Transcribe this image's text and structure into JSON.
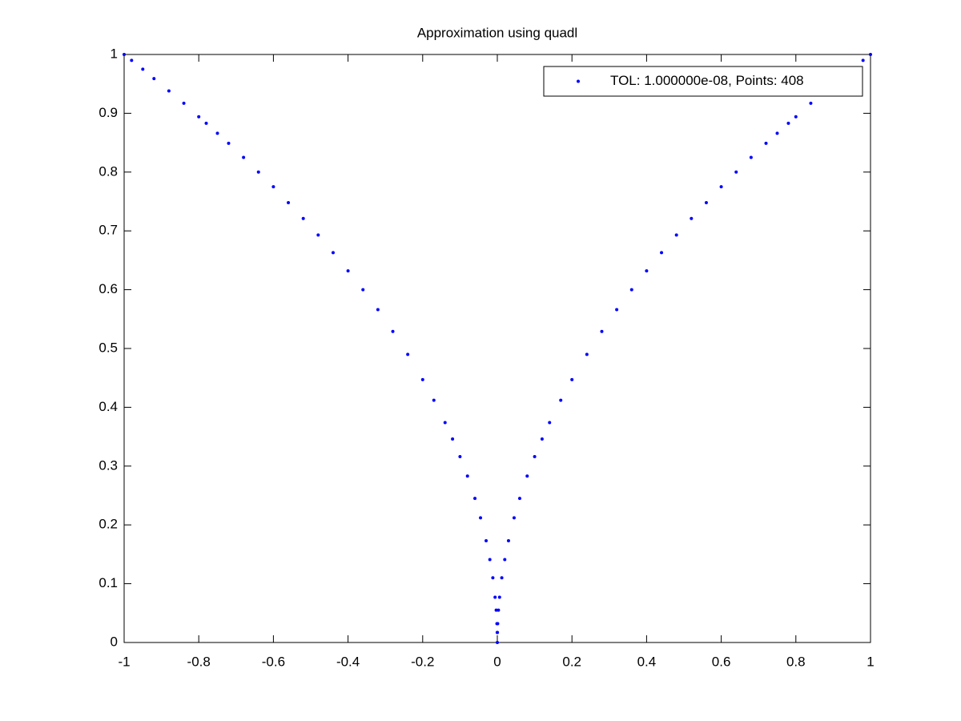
{
  "chart_data": {
    "type": "scatter",
    "title": "Approximation using quadl",
    "x": [
      -1,
      -0.98,
      -0.95,
      -0.92,
      -0.88,
      -0.84,
      -0.8,
      -0.78,
      -0.75,
      -0.72,
      -0.68,
      -0.64,
      -0.6,
      -0.56,
      -0.52,
      -0.48,
      -0.44,
      -0.4,
      -0.36,
      -0.32,
      -0.28,
      -0.24,
      -0.2,
      -0.17,
      -0.14,
      -0.12,
      -0.1,
      -0.08,
      -0.06,
      -0.045,
      -0.03,
      -0.02,
      -0.012,
      -0.006,
      -0.003,
      -0.001,
      -0.0003,
      0,
      0.0003,
      0.001,
      0.003,
      0.006,
      0.012,
      0.02,
      0.03,
      0.045,
      0.06,
      0.08,
      0.1,
      0.12,
      0.14,
      0.17,
      0.2,
      0.24,
      0.28,
      0.32,
      0.36,
      0.4,
      0.44,
      0.48,
      0.52,
      0.56,
      0.6,
      0.64,
      0.68,
      0.72,
      0.75,
      0.78,
      0.8,
      0.84,
      0.88,
      0.92,
      0.95,
      0.98,
      1
    ],
    "series": [
      {
        "name": "TOL: 1.000000e-08, Points: 408",
        "color": "#0000ff",
        "values": [
          1,
          0.99,
          0.975,
          0.959,
          0.938,
          0.917,
          0.894,
          0.883,
          0.866,
          0.849,
          0.825,
          0.8,
          0.775,
          0.748,
          0.721,
          0.693,
          0.663,
          0.632,
          0.6,
          0.566,
          0.529,
          0.49,
          0.447,
          0.412,
          0.374,
          0.346,
          0.316,
          0.283,
          0.245,
          0.212,
          0.173,
          0.141,
          0.11,
          0.077,
          0.055,
          0.032,
          0.017,
          0,
          0.017,
          0.032,
          0.055,
          0.077,
          0.11,
          0.141,
          0.173,
          0.212,
          0.245,
          0.283,
          0.316,
          0.346,
          0.374,
          0.412,
          0.447,
          0.49,
          0.529,
          0.566,
          0.6,
          0.632,
          0.663,
          0.693,
          0.721,
          0.748,
          0.775,
          0.8,
          0.825,
          0.849,
          0.866,
          0.883,
          0.894,
          0.917,
          0.938,
          0.959,
          0.975,
          0.99,
          1
        ]
      }
    ],
    "xlim": [
      -1,
      1
    ],
    "xticks": [
      -1,
      -0.8,
      -0.6,
      -0.4,
      -0.2,
      0,
      0.2,
      0.4,
      0.6,
      0.8,
      1
    ],
    "ylim": [
      0,
      1
    ],
    "yticks": [
      0,
      0.1,
      0.2,
      0.3,
      0.4,
      0.5,
      0.6,
      0.7,
      0.8,
      0.9,
      1
    ],
    "grid": false,
    "legend": "northeast"
  }
}
